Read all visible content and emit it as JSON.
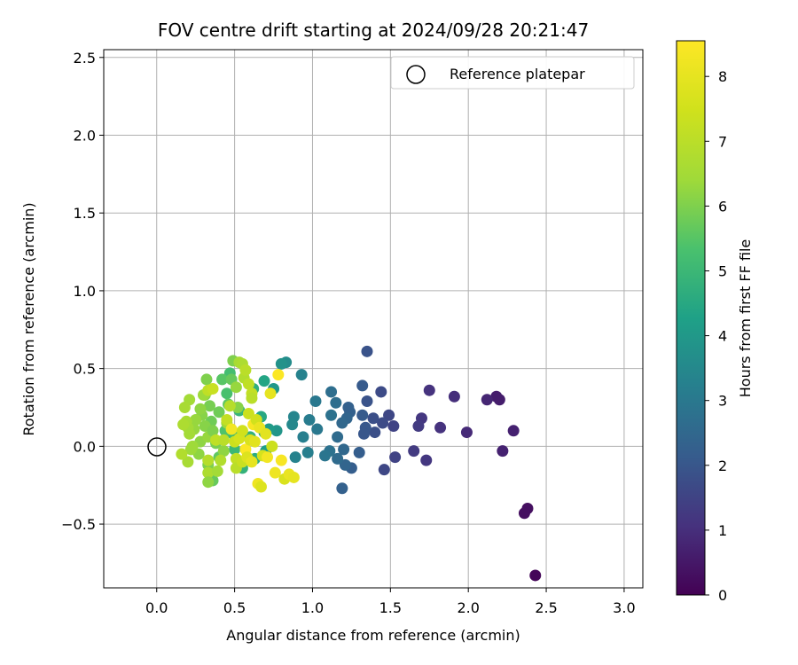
{
  "chart_data": {
    "type": "scatter",
    "title": "FOV centre drift starting at 2024/09/28 20:21:47",
    "xlabel": "Angular distance from reference (arcmin)",
    "ylabel": "Rotation from reference (arcmin)",
    "xlim": [
      -0.34,
      3.12
    ],
    "ylim": [
      -0.91,
      2.55
    ],
    "xticks": [
      0.0,
      0.5,
      1.0,
      1.5,
      2.0,
      2.5,
      3.0
    ],
    "xtick_labels": [
      "0.0",
      "0.5",
      "1.0",
      "1.5",
      "2.0",
      "2.5",
      "3.0"
    ],
    "yticks": [
      -0.5,
      0.0,
      0.5,
      1.0,
      1.5,
      2.0,
      2.5
    ],
    "ytick_labels": [
      "−0.5",
      "0.0",
      "0.5",
      "1.0",
      "1.5",
      "2.0",
      "2.5"
    ],
    "grid": true,
    "legend": {
      "position": "top-right",
      "entries": [
        "Reference platepar"
      ]
    },
    "reference_point": {
      "x": 0.0,
      "y": 0.0,
      "marker": "open-circle"
    },
    "colorbar": {
      "label": "Hours from first FF file",
      "colormap": "viridis",
      "range": [
        0,
        8.55
      ],
      "ticks": [
        0,
        1,
        2,
        3,
        4,
        5,
        6,
        7,
        8
      ],
      "tick_labels": [
        "0",
        "1",
        "2",
        "3",
        "4",
        "5",
        "6",
        "7",
        "8"
      ]
    },
    "colors": {
      "grid": "#b0b0b0",
      "axes": "#000000"
    },
    "points": [
      {
        "x": 2.43,
        "y": -0.83,
        "h": 0.1
      },
      {
        "x": 2.38,
        "y": -0.4,
        "h": 0.3
      },
      {
        "x": 2.36,
        "y": -0.43,
        "h": 0.3
      },
      {
        "x": 2.29,
        "y": 0.1,
        "h": 0.7
      },
      {
        "x": 2.22,
        "y": -0.03,
        "h": 0.7
      },
      {
        "x": 2.2,
        "y": 0.3,
        "h": 0.6
      },
      {
        "x": 2.18,
        "y": 0.32,
        "h": 0.6
      },
      {
        "x": 2.12,
        "y": 0.3,
        "h": 0.8
      },
      {
        "x": 1.99,
        "y": 0.09,
        "h": 0.9
      },
      {
        "x": 1.91,
        "y": 0.32,
        "h": 1.0
      },
      {
        "x": 1.82,
        "y": 0.12,
        "h": 1.1
      },
      {
        "x": 1.75,
        "y": 0.36,
        "h": 1.1
      },
      {
        "x": 1.73,
        "y": -0.09,
        "h": 1.2
      },
      {
        "x": 1.7,
        "y": 0.18,
        "h": 1.2
      },
      {
        "x": 1.68,
        "y": 0.13,
        "h": 1.3
      },
      {
        "x": 1.65,
        "y": -0.03,
        "h": 1.3
      },
      {
        "x": 1.53,
        "y": -0.07,
        "h": 1.5
      },
      {
        "x": 1.52,
        "y": 0.13,
        "h": 1.5
      },
      {
        "x": 1.49,
        "y": 0.2,
        "h": 1.6
      },
      {
        "x": 1.46,
        "y": -0.15,
        "h": 1.6
      },
      {
        "x": 1.45,
        "y": 0.15,
        "h": 1.7
      },
      {
        "x": 1.44,
        "y": 0.35,
        "h": 1.7
      },
      {
        "x": 1.4,
        "y": 0.09,
        "h": 1.8
      },
      {
        "x": 1.39,
        "y": 0.18,
        "h": 1.8
      },
      {
        "x": 1.35,
        "y": 0.61,
        "h": 1.9
      },
      {
        "x": 1.35,
        "y": 0.29,
        "h": 1.9
      },
      {
        "x": 1.34,
        "y": 0.12,
        "h": 2.0
      },
      {
        "x": 1.33,
        "y": 0.08,
        "h": 2.0
      },
      {
        "x": 1.32,
        "y": 0.2,
        "h": 2.1
      },
      {
        "x": 1.32,
        "y": 0.39,
        "h": 2.1
      },
      {
        "x": 1.3,
        "y": -0.04,
        "h": 2.2
      },
      {
        "x": 1.25,
        "y": -0.14,
        "h": 2.2
      },
      {
        "x": 1.24,
        "y": 0.22,
        "h": 2.3
      },
      {
        "x": 1.23,
        "y": 0.25,
        "h": 2.3
      },
      {
        "x": 1.22,
        "y": 0.18,
        "h": 2.4
      },
      {
        "x": 1.21,
        "y": -0.12,
        "h": 2.4
      },
      {
        "x": 1.2,
        "y": -0.02,
        "h": 2.5
      },
      {
        "x": 1.19,
        "y": 0.15,
        "h": 2.5
      },
      {
        "x": 1.19,
        "y": -0.27,
        "h": 2.3
      },
      {
        "x": 1.16,
        "y": 0.06,
        "h": 2.6
      },
      {
        "x": 1.16,
        "y": -0.08,
        "h": 2.6
      },
      {
        "x": 1.15,
        "y": 0.28,
        "h": 2.7
      },
      {
        "x": 1.12,
        "y": 0.35,
        "h": 2.7
      },
      {
        "x": 1.12,
        "y": 0.2,
        "h": 2.8
      },
      {
        "x": 1.11,
        "y": -0.03,
        "h": 2.8
      },
      {
        "x": 1.08,
        "y": -0.06,
        "h": 2.9
      },
      {
        "x": 1.03,
        "y": 0.11,
        "h": 3.0
      },
      {
        "x": 1.02,
        "y": 0.29,
        "h": 3.0
      },
      {
        "x": 0.98,
        "y": 0.17,
        "h": 3.1
      },
      {
        "x": 0.97,
        "y": -0.04,
        "h": 3.2
      },
      {
        "x": 0.94,
        "y": 0.06,
        "h": 3.2
      },
      {
        "x": 0.93,
        "y": 0.46,
        "h": 3.3
      },
      {
        "x": 0.89,
        "y": -0.07,
        "h": 3.3
      },
      {
        "x": 0.88,
        "y": 0.19,
        "h": 3.4
      },
      {
        "x": 0.87,
        "y": 0.14,
        "h": 3.5
      },
      {
        "x": 0.83,
        "y": 0.54,
        "h": 3.6
      },
      {
        "x": 0.8,
        "y": 0.53,
        "h": 3.8
      },
      {
        "x": 0.77,
        "y": 0.1,
        "h": 3.9
      },
      {
        "x": 0.75,
        "y": 0.37,
        "h": 4.0
      },
      {
        "x": 0.72,
        "y": 0.11,
        "h": 4.1
      },
      {
        "x": 0.7,
        "y": -0.03,
        "h": 4.2
      },
      {
        "x": 0.69,
        "y": 0.09,
        "h": 4.3
      },
      {
        "x": 0.69,
        "y": 0.42,
        "h": 4.4
      },
      {
        "x": 0.67,
        "y": 0.19,
        "h": 4.5
      },
      {
        "x": 0.63,
        "y": -0.08,
        "h": 4.6
      },
      {
        "x": 0.62,
        "y": 0.37,
        "h": 4.7
      },
      {
        "x": 0.6,
        "y": 0.06,
        "h": 4.8
      },
      {
        "x": 0.55,
        "y": -0.14,
        "h": 4.8
      },
      {
        "x": 0.53,
        "y": 0.23,
        "h": 4.9
      },
      {
        "x": 0.5,
        "y": -0.02,
        "h": 5.0
      },
      {
        "x": 0.49,
        "y": 0.08,
        "h": 5.1
      },
      {
        "x": 0.47,
        "y": 0.47,
        "h": 5.2
      },
      {
        "x": 0.45,
        "y": 0.34,
        "h": 5.3
      },
      {
        "x": 0.44,
        "y": 0.1,
        "h": 5.4
      },
      {
        "x": 0.42,
        "y": 0.43,
        "h": 5.5
      },
      {
        "x": 0.4,
        "y": -0.07,
        "h": 5.6
      },
      {
        "x": 0.36,
        "y": -0.22,
        "h": 5.7
      },
      {
        "x": 0.35,
        "y": 0.16,
        "h": 5.8
      },
      {
        "x": 0.34,
        "y": 0.26,
        "h": 5.9
      },
      {
        "x": 0.33,
        "y": -0.12,
        "h": 6.0
      },
      {
        "x": 0.32,
        "y": 0.43,
        "h": 6.0
      },
      {
        "x": 0.31,
        "y": 0.33,
        "h": 6.1
      },
      {
        "x": 0.29,
        "y": 0.2,
        "h": 6.1
      },
      {
        "x": 0.28,
        "y": 0.03,
        "h": 6.2
      },
      {
        "x": 0.27,
        "y": -0.05,
        "h": 6.2
      },
      {
        "x": 0.25,
        "y": 0.17,
        "h": 6.3
      },
      {
        "x": 0.24,
        "y": 0.11,
        "h": 6.3
      },
      {
        "x": 0.23,
        "y": 0.0,
        "h": 6.4
      },
      {
        "x": 0.22,
        "y": -0.02,
        "h": 6.4
      },
      {
        "x": 0.21,
        "y": 0.3,
        "h": 6.5
      },
      {
        "x": 0.21,
        "y": 0.08,
        "h": 6.5
      },
      {
        "x": 0.2,
        "y": 0.12,
        "h": 6.5
      },
      {
        "x": 0.2,
        "y": -0.1,
        "h": 6.6
      },
      {
        "x": 0.19,
        "y": 0.16,
        "h": 6.6
      },
      {
        "x": 0.18,
        "y": 0.25,
        "h": 6.6
      },
      {
        "x": 0.17,
        "y": 0.14,
        "h": 6.7
      },
      {
        "x": 0.16,
        "y": -0.05,
        "h": 6.8
      },
      {
        "x": 0.28,
        "y": 0.24,
        "h": 6.2
      },
      {
        "x": 0.31,
        "y": 0.13,
        "h": 6.1
      },
      {
        "x": 0.33,
        "y": 0.06,
        "h": 6.3
      },
      {
        "x": 0.36,
        "y": 0.1,
        "h": 6.0
      },
      {
        "x": 0.38,
        "y": 0.02,
        "h": 5.9
      },
      {
        "x": 0.4,
        "y": 0.22,
        "h": 5.8
      },
      {
        "x": 0.43,
        "y": -0.03,
        "h": 6.2
      },
      {
        "x": 0.45,
        "y": 0.15,
        "h": 6.4
      },
      {
        "x": 0.46,
        "y": 0.27,
        "h": 5.6
      },
      {
        "x": 0.48,
        "y": 0.43,
        "h": 5.7
      },
      {
        "x": 0.49,
        "y": 0.55,
        "h": 6.0
      },
      {
        "x": 0.51,
        "y": 0.38,
        "h": 6.3
      },
      {
        "x": 0.52,
        "y": 0.25,
        "h": 6.1
      },
      {
        "x": 0.53,
        "y": 0.54,
        "h": 6.6
      },
      {
        "x": 0.55,
        "y": 0.53,
        "h": 6.7
      },
      {
        "x": 0.56,
        "y": 0.44,
        "h": 6.8
      },
      {
        "x": 0.57,
        "y": 0.49,
        "h": 7.0
      },
      {
        "x": 0.59,
        "y": 0.4,
        "h": 7.1
      },
      {
        "x": 0.61,
        "y": 0.34,
        "h": 7.2
      },
      {
        "x": 0.61,
        "y": 0.31,
        "h": 7.0
      },
      {
        "x": 0.3,
        "y": 0.33,
        "h": 6.4
      },
      {
        "x": 0.33,
        "y": 0.36,
        "h": 7.1
      },
      {
        "x": 0.36,
        "y": 0.37,
        "h": 7.3
      },
      {
        "x": 0.38,
        "y": 0.04,
        "h": 7.1
      },
      {
        "x": 0.33,
        "y": -0.09,
        "h": 6.9
      },
      {
        "x": 0.33,
        "y": -0.17,
        "h": 6.7
      },
      {
        "x": 0.33,
        "y": -0.23,
        "h": 6.2
      },
      {
        "x": 0.39,
        "y": -0.16,
        "h": 6.5
      },
      {
        "x": 0.41,
        "y": -0.09,
        "h": 6.8
      },
      {
        "x": 0.43,
        "y": 0.04,
        "h": 7.0
      },
      {
        "x": 0.45,
        "y": 0.17,
        "h": 7.2
      },
      {
        "x": 0.47,
        "y": 0.26,
        "h": 6.9
      },
      {
        "x": 0.48,
        "y": 0.11,
        "h": 8.3
      },
      {
        "x": 0.5,
        "y": 0.03,
        "h": 7.4
      },
      {
        "x": 0.51,
        "y": -0.08,
        "h": 7.2
      },
      {
        "x": 0.51,
        "y": -0.14,
        "h": 7.0
      },
      {
        "x": 0.53,
        "y": 0.05,
        "h": 7.6
      },
      {
        "x": 0.55,
        "y": 0.1,
        "h": 7.5
      },
      {
        "x": 0.55,
        "y": -0.1,
        "h": 7.3
      },
      {
        "x": 0.57,
        "y": -0.02,
        "h": 8.5
      },
      {
        "x": 0.58,
        "y": -0.07,
        "h": 7.8
      },
      {
        "x": 0.59,
        "y": 0.21,
        "h": 7.4
      },
      {
        "x": 0.6,
        "y": 0.04,
        "h": 7.7
      },
      {
        "x": 0.61,
        "y": -0.1,
        "h": 8.0
      },
      {
        "x": 0.62,
        "y": 0.14,
        "h": 8.4
      },
      {
        "x": 0.63,
        "y": 0.03,
        "h": 7.9
      },
      {
        "x": 0.64,
        "y": 0.17,
        "h": 7.5
      },
      {
        "x": 0.65,
        "y": -0.24,
        "h": 8.2
      },
      {
        "x": 0.66,
        "y": 0.12,
        "h": 8.1
      },
      {
        "x": 0.67,
        "y": -0.26,
        "h": 7.8
      },
      {
        "x": 0.68,
        "y": -0.06,
        "h": 7.6
      },
      {
        "x": 0.7,
        "y": 0.08,
        "h": 7.9
      },
      {
        "x": 0.71,
        "y": -0.07,
        "h": 8.3
      },
      {
        "x": 0.73,
        "y": 0.34,
        "h": 8.0
      },
      {
        "x": 0.74,
        "y": 0.0,
        "h": 7.4
      },
      {
        "x": 0.76,
        "y": -0.17,
        "h": 8.2
      },
      {
        "x": 0.78,
        "y": 0.46,
        "h": 8.5
      },
      {
        "x": 0.8,
        "y": -0.09,
        "h": 8.4
      },
      {
        "x": 0.82,
        "y": -0.21,
        "h": 7.7
      },
      {
        "x": 0.85,
        "y": -0.18,
        "h": 8.1
      },
      {
        "x": 0.88,
        "y": -0.2,
        "h": 8.0
      }
    ]
  }
}
